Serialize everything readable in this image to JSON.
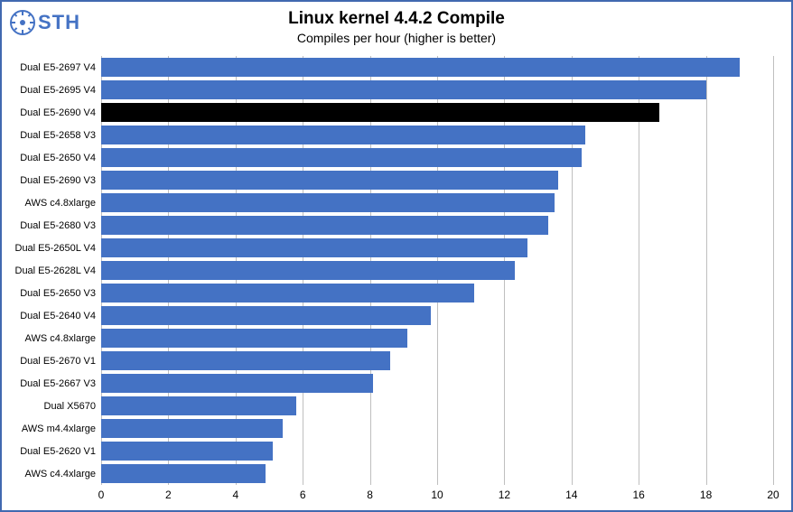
{
  "logo_text": "STH",
  "title": "Linux kernel 4.4.2 Compile",
  "subtitle": "Compiles per hour (higher is better)",
  "chart": {
    "type": "bar",
    "orientation": "horizontal",
    "xlim": [
      0,
      20
    ],
    "xtick_step": 2,
    "xticks": [
      0,
      2,
      4,
      6,
      8,
      10,
      12,
      14,
      16,
      18,
      20
    ],
    "bar_default_color": "#4472c4",
    "highlight_color": "#000000",
    "grid_color": "#bfbfbf",
    "background_color": "#ffffff",
    "border_color": "#4169b0",
    "tick_fontsize": 12,
    "ylabel_fontsize": 11,
    "title_fontsize": 19,
    "subtitle_fontsize": 14,
    "series": [
      {
        "label": "Dual E5-2697 V4",
        "value": 19.0,
        "color": "#4472c4"
      },
      {
        "label": "Dual E5-2695 V4",
        "value": 18.0,
        "color": "#4472c4"
      },
      {
        "label": "Dual E5-2690 V4",
        "value": 16.6,
        "color": "#000000"
      },
      {
        "label": "Dual E5-2658 V3",
        "value": 14.4,
        "color": "#4472c4"
      },
      {
        "label": "Dual E5-2650 V4",
        "value": 14.3,
        "color": "#4472c4"
      },
      {
        "label": "Dual E5-2690 V3",
        "value": 13.6,
        "color": "#4472c4"
      },
      {
        "label": "AWS c4.8xlarge",
        "value": 13.5,
        "color": "#4472c4"
      },
      {
        "label": "Dual E5-2680 V3",
        "value": 13.3,
        "color": "#4472c4"
      },
      {
        "label": "Dual E5-2650L V4",
        "value": 12.7,
        "color": "#4472c4"
      },
      {
        "label": "Dual E5-2628L V4",
        "value": 12.3,
        "color": "#4472c4"
      },
      {
        "label": "Dual E5-2650 V3",
        "value": 11.1,
        "color": "#4472c4"
      },
      {
        "label": "Dual E5-2640 V4",
        "value": 9.8,
        "color": "#4472c4"
      },
      {
        "label": "AWS c4.8xlarge",
        "value": 9.1,
        "color": "#4472c4"
      },
      {
        "label": "Dual E5-2670 V1",
        "value": 8.6,
        "color": "#4472c4"
      },
      {
        "label": "Dual E5-2667 V3",
        "value": 8.1,
        "color": "#4472c4"
      },
      {
        "label": "Dual X5670",
        "value": 5.8,
        "color": "#4472c4"
      },
      {
        "label": "AWS m4.4xlarge",
        "value": 5.4,
        "color": "#4472c4"
      },
      {
        "label": "Dual E5-2620 V1",
        "value": 5.1,
        "color": "#4472c4"
      },
      {
        "label": "AWS c4.4xlarge",
        "value": 4.9,
        "color": "#4472c4"
      }
    ]
  }
}
